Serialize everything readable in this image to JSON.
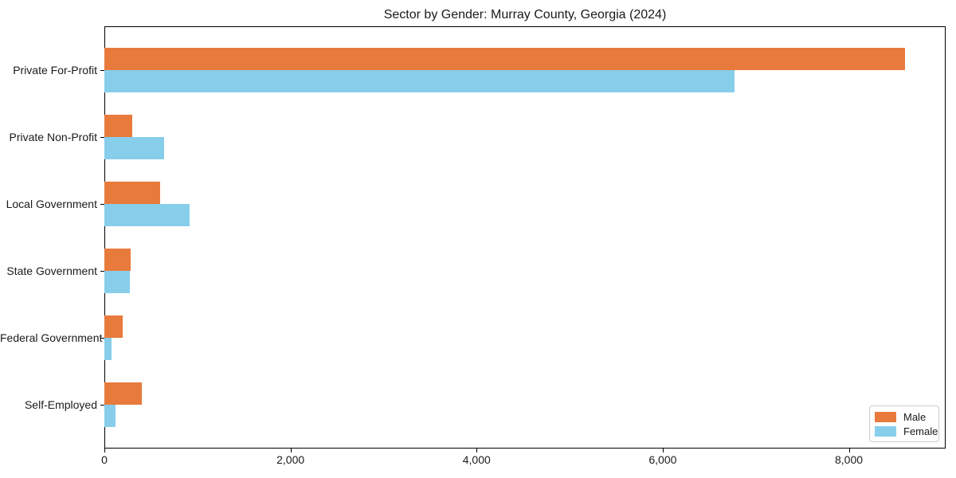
{
  "chart_data": {
    "type": "bar",
    "orientation": "horizontal",
    "title": "Sector by Gender: Murray County, Georgia (2024)",
    "categories": [
      "Private For-Profit",
      "Private Non-Profit",
      "Local Government",
      "State Government",
      "Federal Government",
      "Self-Employed"
    ],
    "series": [
      {
        "name": "Male",
        "color": "#e87a3c",
        "values": [
          8600,
          300,
          600,
          280,
          200,
          405
        ]
      },
      {
        "name": "Female",
        "color": "#87ceeb",
        "values": [
          6770,
          640,
          920,
          270,
          75,
          120
        ]
      }
    ],
    "xlabel": "",
    "ylabel": "",
    "xlim": [
      0,
      9040
    ],
    "xticks": [
      0,
      2000,
      4000,
      6000,
      8000
    ],
    "xtick_labels": [
      "0",
      "2,000",
      "4,000",
      "6,000",
      "8,000"
    ],
    "grid": false,
    "legend": {
      "position": "lower right",
      "entries": [
        "Male",
        "Female"
      ]
    }
  },
  "colors": {
    "axis": "#000000",
    "text": "#1a1a1a",
    "legend_border": "#cccccc",
    "background": "#ffffff"
  }
}
